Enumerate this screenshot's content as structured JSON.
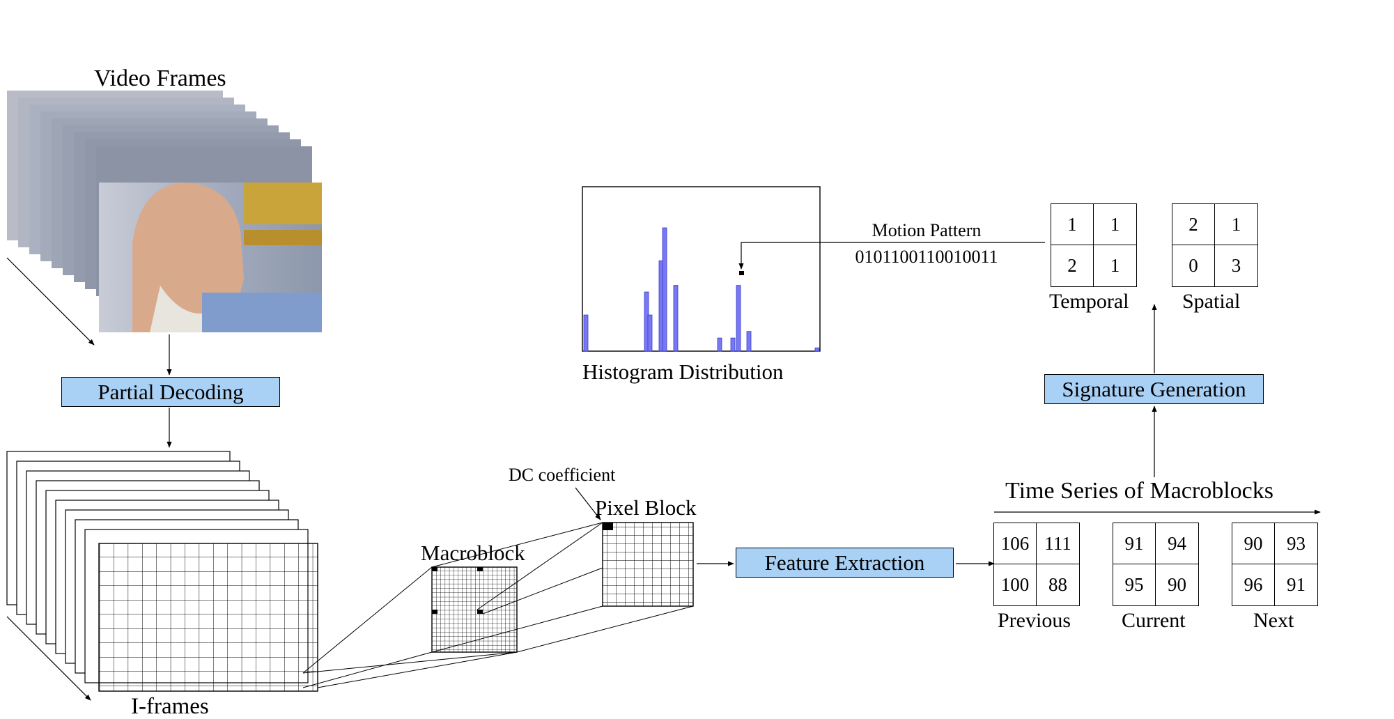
{
  "labels": {
    "video_frames": "Video Frames",
    "i_frames": "I-frames",
    "macroblock": "Macroblock",
    "pixel_block": "Pixel Block",
    "dc_coefficient": "DC coefficient",
    "histogram": "Histogram Distribution",
    "motion_pattern_title": "Motion Pattern",
    "motion_pattern_bits": "0101100110010011",
    "time_series": "Time Series of Macroblocks"
  },
  "process_boxes": {
    "partial_decoding": "Partial Decoding",
    "feature_extraction": "Feature Extraction",
    "signature_generation": "Signature Generation"
  },
  "signatures": [
    {
      "label": "Temporal",
      "cells": [
        "1",
        "1",
        "2",
        "1"
      ]
    },
    {
      "label": "Spatial",
      "cells": [
        "2",
        "1",
        "0",
        "3"
      ]
    }
  ],
  "macroblock_series": [
    {
      "label": "Previous",
      "cells": [
        "106",
        "111",
        "100",
        "88"
      ]
    },
    {
      "label": "Current",
      "cells": [
        "91",
        "94",
        "95",
        "90"
      ]
    },
    {
      "label": "Next",
      "cells": [
        "90",
        "93",
        "96",
        "91"
      ]
    }
  ],
  "histogram_bars": [
    0.22,
    0.36,
    0.22,
    0.55,
    0.75,
    0.4,
    0.08,
    0.08,
    0.4,
    0.12,
    0.02
  ],
  "colors": {
    "process_fill": "#a9d0f5",
    "histogram_bar": "#7878f5",
    "frame_sky": "#9aa4b8",
    "frame_wall": "#c9a43a"
  }
}
